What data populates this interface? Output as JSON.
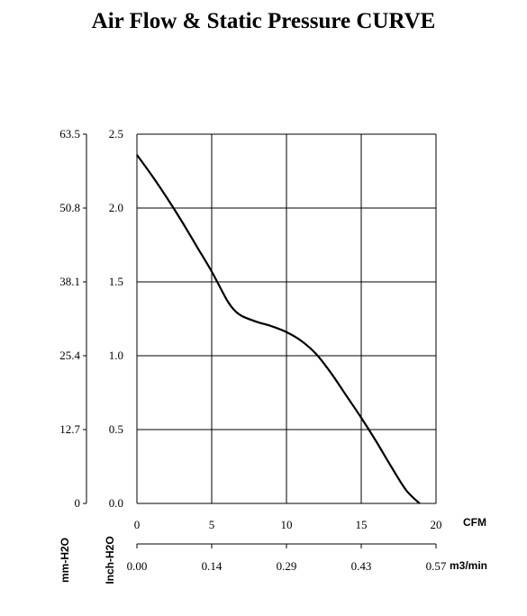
{
  "chart_data": {
    "type": "line",
    "title": "Air Flow & Static Pressure CURVE",
    "x_primary": {
      "unit": "CFM",
      "ticks": [
        "0",
        "5",
        "10",
        "15",
        "20"
      ],
      "range": [
        0,
        20
      ]
    },
    "x_secondary": {
      "unit": "m3/min",
      "ticks": [
        "0.00",
        "0.14",
        "0.29",
        "0.43",
        "0.57"
      ]
    },
    "y_primary": {
      "label": "Inch-H2O",
      "ticks": [
        "0.0",
        "0.5",
        "1.0",
        "1.5",
        "2.0",
        "2.5"
      ],
      "range": [
        0,
        2.5
      ]
    },
    "y_secondary": {
      "label": "mm-H2O",
      "ticks": [
        "0",
        "12.7",
        "25.4",
        "38.1",
        "50.8",
        "63.5"
      ]
    },
    "grid": true,
    "series": [
      {
        "x": [
          0,
          1,
          2,
          3,
          4,
          5,
          6,
          6.5,
          7,
          8,
          9,
          10,
          11,
          12,
          13,
          14,
          15,
          16,
          17,
          18,
          18.9
        ],
        "y": [
          2.36,
          2.22,
          2.07,
          1.91,
          1.74,
          1.57,
          1.38,
          1.31,
          1.27,
          1.23,
          1.2,
          1.16,
          1.1,
          1.01,
          0.88,
          0.73,
          0.58,
          0.42,
          0.25,
          0.09,
          0.0
        ]
      }
    ]
  }
}
